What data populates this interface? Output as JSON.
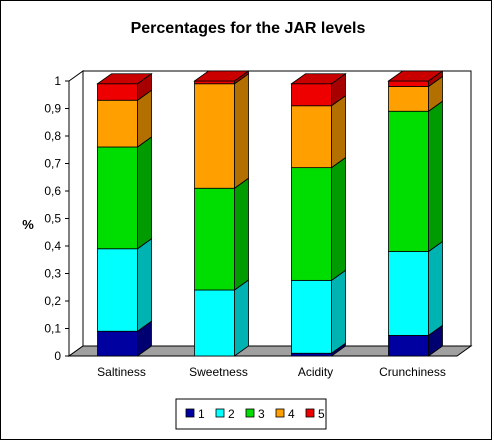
{
  "chart_data": {
    "type": "bar",
    "stacked": true,
    "three_d": true,
    "title": "Percentages for the JAR levels",
    "ylabel": "%",
    "xlabel": "",
    "ylim": [
      0,
      1
    ],
    "yticks": [
      "0",
      "0,1",
      "0,2",
      "0,3",
      "0,4",
      "0,5",
      "0,6",
      "0,7",
      "0,8",
      "0,9",
      "1"
    ],
    "categories": [
      "Saltiness",
      "Sweetness",
      "Acidity",
      "Crunchiness"
    ],
    "series": [
      {
        "name": "1",
        "color": "#0000A0",
        "values": [
          0.09,
          0.0,
          0.01,
          0.075
        ]
      },
      {
        "name": "2",
        "color": "#00FFFF",
        "values": [
          0.3,
          0.24,
          0.265,
          0.305
        ]
      },
      {
        "name": "3",
        "color": "#00DD00",
        "values": [
          0.37,
          0.37,
          0.41,
          0.51
        ]
      },
      {
        "name": "4",
        "color": "#FFA000",
        "values": [
          0.17,
          0.38,
          0.225,
          0.09
        ]
      },
      {
        "name": "5",
        "color": "#EE0000",
        "values": [
          0.06,
          0.01,
          0.08,
          0.02
        ]
      }
    ],
    "legend_position": "bottom",
    "grid": false
  }
}
